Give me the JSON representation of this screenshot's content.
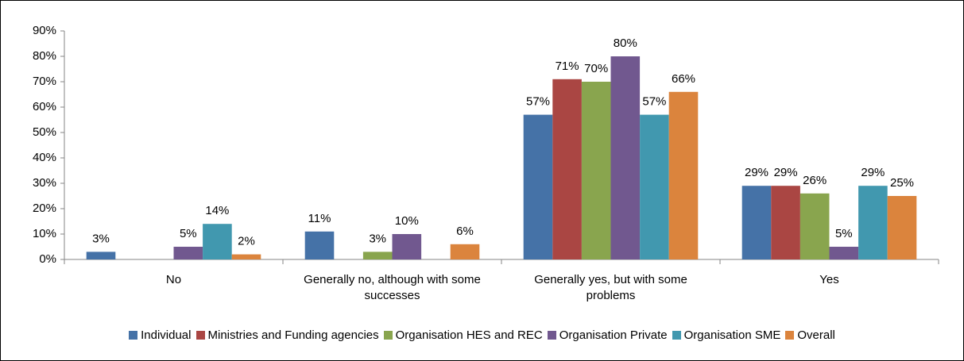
{
  "chart_data": {
    "type": "bar",
    "categories": [
      "No",
      "Generally no, although with some successes",
      "Generally yes, but with some problems",
      "Yes"
    ],
    "series": [
      {
        "name": "Individual",
        "color": "#4572a7",
        "values": [
          3,
          11,
          57,
          29
        ],
        "value_labels": [
          "3%",
          "11%",
          "57%",
          "29%"
        ]
      },
      {
        "name": "Ministries and Funding agencies",
        "color": "#aa4643",
        "values": [
          null,
          null,
          71,
          29
        ],
        "value_labels": [
          null,
          null,
          "71%",
          "29%"
        ]
      },
      {
        "name": "Organisation HES and REC",
        "color": "#89a54e",
        "values": [
          null,
          3,
          70,
          26
        ],
        "value_labels": [
          null,
          "3%",
          "70%",
          "26%"
        ]
      },
      {
        "name": "Organisation Private",
        "color": "#71588f",
        "values": [
          5,
          10,
          80,
          5
        ],
        "value_labels": [
          "5%",
          "10%",
          "80%",
          "5%"
        ]
      },
      {
        "name": "Organisation SME",
        "color": "#4198af",
        "values": [
          14,
          null,
          57,
          29
        ],
        "value_labels": [
          "14%",
          null,
          "57%",
          "29%"
        ]
      },
      {
        "name": "Overall",
        "color": "#db843d",
        "values": [
          2,
          6,
          66,
          25
        ],
        "value_labels": [
          "2%",
          "6%",
          "66%",
          "25%"
        ]
      }
    ],
    "ylim": [
      0,
      90
    ],
    "yticks": [
      {
        "value": 0,
        "label": "0%"
      },
      {
        "value": 10,
        "label": "10%"
      },
      {
        "value": 20,
        "label": "20%"
      },
      {
        "value": 30,
        "label": "30%"
      },
      {
        "value": 40,
        "label": "40%"
      },
      {
        "value": 50,
        "label": "50%"
      },
      {
        "value": 60,
        "label": "60%"
      },
      {
        "value": 70,
        "label": "70%"
      },
      {
        "value": 80,
        "label": "80%"
      },
      {
        "value": 90,
        "label": "90%"
      }
    ],
    "legend": "bottom"
  }
}
